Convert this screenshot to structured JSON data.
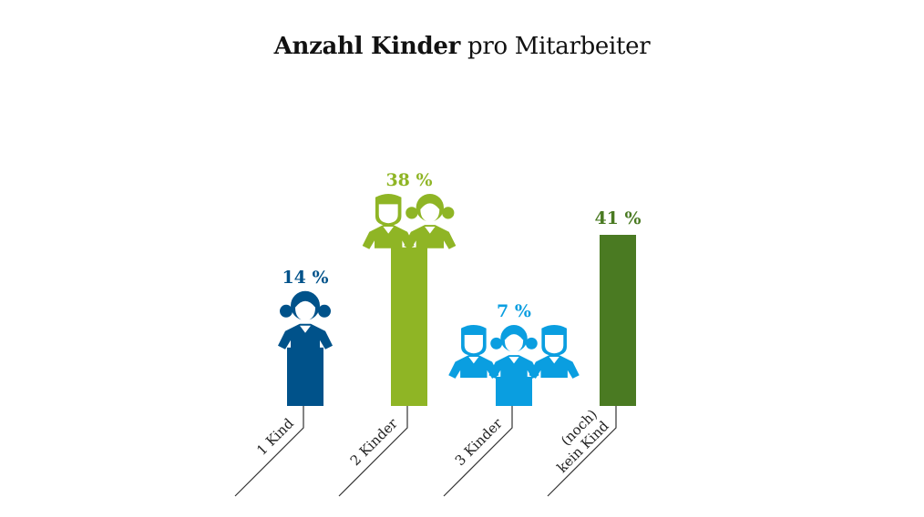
{
  "title": {
    "bold": "Anzahl Kinder",
    "rest": "pro Mitarbeiter"
  },
  "chart_data": {
    "type": "bar",
    "title": "Anzahl Kinder pro Mitarbeiter",
    "unit": "%",
    "categories": [
      "1 Kind",
      "2 Kinder",
      "3 Kinder",
      "(noch) kein Kind"
    ],
    "category_lines": [
      [
        "1 Kind"
      ],
      [
        "2 Kinder"
      ],
      [
        "3 Kinder"
      ],
      [
        "(noch)",
        "kein Kind"
      ]
    ],
    "values": [
      14,
      38,
      7,
      41
    ],
    "value_labels": [
      "14 %",
      "38 %",
      "7 %",
      "41 %"
    ],
    "colors": [
      "#00528a",
      "#8fb525",
      "#0a9ee0",
      "#4a7a22"
    ],
    "figures": [
      [
        "girl"
      ],
      [
        "boy",
        "girl"
      ],
      [
        "boy",
        "girl",
        "boy"
      ],
      []
    ],
    "ylim": [
      0,
      41
    ],
    "grid": false,
    "legend": "none"
  }
}
